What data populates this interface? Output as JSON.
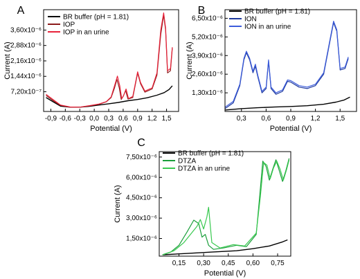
{
  "chart_data": [
    {
      "type": "line",
      "panel": "A",
      "xlabel": "Potential (V)",
      "ylabel": "Current (A)",
      "xlim": [
        -1.05,
        1.75
      ],
      "ylim": [
        -2e-07,
        4.55e-06
      ],
      "xticks": [
        -0.9,
        -0.6,
        -0.3,
        0.0,
        0.3,
        0.6,
        0.9,
        1.2,
        1.5
      ],
      "xtick_labels": [
        "-0,9",
        "-0,6",
        "-0,3",
        "0,0",
        "0,3",
        "0,6",
        "0,9",
        "1,2",
        "1,5"
      ],
      "yticks": [
        7.2e-07,
        1.44e-06,
        2.16e-06,
        2.88e-06,
        3.6e-06
      ],
      "ytick_labels": [
        "7,20x10⁻⁷",
        "1,44x10⁻⁶",
        "2,16x10⁻⁶",
        "2,88x10⁻⁶",
        "3,60x10⁻⁶"
      ],
      "legend_position": "top-left",
      "series": [
        {
          "name": "BR buffer (pH  = 1.81)",
          "color": "#000000",
          "x": [
            -1.0,
            -0.85,
            -0.7,
            -0.5,
            -0.3,
            -0.1,
            0.1,
            0.3,
            0.5,
            0.7,
            0.9,
            1.1,
            1.3,
            1.45,
            1.55,
            1.62
          ],
          "y": [
            4.5e-07,
            2.5e-07,
            5e-08,
            0,
            0,
            4e-08,
            1e-07,
            1.6e-07,
            2.2e-07,
            3e-07,
            3.6e-07,
            4.4e-07,
            5.6e-07,
            6.8e-07,
            8.2e-07,
            1e-06
          ]
        },
        {
          "name": "IOP",
          "color": "#8b1a1a",
          "x": [
            -1.0,
            -0.85,
            -0.7,
            -0.5,
            -0.3,
            -0.1,
            0.1,
            0.25,
            0.35,
            0.42,
            0.47,
            0.52,
            0.56,
            0.6,
            0.65,
            0.7,
            0.8,
            0.9,
            0.96,
            1.05,
            1.2,
            1.3,
            1.38,
            1.44,
            1.48,
            1.52,
            1.58,
            1.62
          ],
          "y": [
            5.5e-07,
            3e-07,
            8e-08,
            0,
            0,
            6e-08,
            1.4e-07,
            2.5e-07,
            4.5e-07,
            9e-07,
            1.3e-06,
            9e-07,
            3.6e-07,
            5e-07,
            7.8e-07,
            3.8e-07,
            4.5e-07,
            1.6e-06,
            1.1e-06,
            7e-07,
            8.5e-07,
            1.5e-06,
            3.4e-06,
            4.3e-06,
            3.6e-06,
            1.6e-06,
            1.7e-06,
            2.75e-06
          ]
        },
        {
          "name": "IOP in an urine",
          "color": "#e8233a",
          "x": [
            -1.0,
            -0.85,
            -0.7,
            -0.5,
            -0.3,
            -0.1,
            0.1,
            0.25,
            0.35,
            0.42,
            0.48,
            0.53,
            0.57,
            0.61,
            0.66,
            0.71,
            0.8,
            0.9,
            0.96,
            1.05,
            1.2,
            1.3,
            1.38,
            1.44,
            1.48,
            1.52,
            1.58,
            1.62
          ],
          "y": [
            6e-07,
            3.5e-07,
            1e-07,
            1e-08,
            0,
            7e-08,
            1.5e-07,
            2.6e-07,
            4.8e-07,
            1e-06,
            1.45e-06,
            1e-06,
            4e-07,
            5.5e-07,
            8.5e-07,
            4e-07,
            5e-07,
            1.65e-06,
            1.15e-06,
            7.5e-07,
            9e-07,
            1.6e-06,
            3.6e-06,
            4.4e-06,
            3.7e-06,
            1.7e-06,
            1.8e-06,
            2.8e-06
          ]
        }
      ]
    },
    {
      "type": "line",
      "panel": "B",
      "xlabel": "Potential (V)",
      "ylabel": "Current (A)",
      "xlim": [
        0.1,
        1.7
      ],
      "ylim": [
        0,
        7.1e-06
      ],
      "xticks": [
        0.3,
        0.6,
        0.9,
        1.2,
        1.5
      ],
      "xtick_labels": [
        "0,3",
        "0,6",
        "0,9",
        "1,2",
        "1,5"
      ],
      "yticks": [
        1.3e-06,
        2.6e-06,
        3.9e-06,
        5.2e-06,
        6.5e-06
      ],
      "ytick_labels": [
        "1,30x10⁻⁶",
        "2,60x10⁻⁶",
        "3,90x10⁻⁶",
        "5,20x10⁻⁶",
        "6,50x10⁻⁶"
      ],
      "legend_position": "top-left",
      "series": [
        {
          "name": "BR buffer (pH  = 1.81)",
          "color": "#000000",
          "x": [
            0.1,
            0.3,
            0.5,
            0.7,
            0.9,
            1.1,
            1.3,
            1.45,
            1.55,
            1.62
          ],
          "y": [
            1e-07,
            2e-07,
            2.6e-07,
            3.1e-07,
            3.5e-07,
            4e-07,
            5e-07,
            6.5e-07,
            8e-07,
            1e-06
          ]
        },
        {
          "name": "ION",
          "color": "#1f3a9e",
          "x": [
            0.1,
            0.2,
            0.28,
            0.33,
            0.36,
            0.4,
            0.44,
            0.47,
            0.5,
            0.55,
            0.6,
            0.63,
            0.66,
            0.72,
            0.8,
            0.86,
            0.9,
            1.0,
            1.1,
            1.2,
            1.3,
            1.38,
            1.42,
            1.46,
            1.5,
            1.56,
            1.6
          ],
          "y": [
            2e-07,
            6e-07,
            1.8e-06,
            3.6e-06,
            4.1e-06,
            3.6e-06,
            2.7e-06,
            3.15e-06,
            2.4e-06,
            1.3e-06,
            1.6e-06,
            3.5e-06,
            1.6e-06,
            1.2e-06,
            1.4e-06,
            2.1e-06,
            2.05e-06,
            1.7e-06,
            1.6e-06,
            1.8e-06,
            2.6e-06,
            5e-06,
            6.2e-06,
            5.6e-06,
            2.9e-06,
            3e-06,
            3.7e-06
          ]
        },
        {
          "name": "ION in an urine",
          "color": "#3b5bdb",
          "x": [
            0.1,
            0.2,
            0.28,
            0.33,
            0.36,
            0.4,
            0.44,
            0.47,
            0.5,
            0.55,
            0.6,
            0.63,
            0.66,
            0.72,
            0.8,
            0.86,
            0.9,
            1.0,
            1.1,
            1.2,
            1.3,
            1.38,
            1.42,
            1.46,
            1.5,
            1.56,
            1.6
          ],
          "y": [
            3e-07,
            7e-07,
            1.9e-06,
            3.7e-06,
            4.2e-06,
            3.7e-06,
            2.8e-06,
            3.3e-06,
            2.5e-06,
            1.4e-06,
            1.7e-06,
            3.6e-06,
            1.7e-06,
            1.3e-06,
            1.5e-06,
            2.2e-06,
            2.15e-06,
            1.8e-06,
            1.7e-06,
            1.9e-06,
            2.7e-06,
            5.1e-06,
            6.3e-06,
            5.7e-06,
            3e-06,
            3.1e-06,
            3.8e-06
          ]
        }
      ]
    },
    {
      "type": "line",
      "panel": "C",
      "xlabel": "Potential (V)",
      "ylabel": "Current (A)",
      "xlim": [
        0.03,
        0.83
      ],
      "ylim": [
        2e-07,
        7.9e-06
      ],
      "xticks": [
        0.15,
        0.3,
        0.45,
        0.6,
        0.75
      ],
      "xtick_labels": [
        "0,15",
        "0,30",
        "0,45",
        "0,60",
        "0,75"
      ],
      "yticks": [
        1.5e-06,
        3e-06,
        4.5e-06,
        6e-06,
        7.5e-06
      ],
      "ytick_labels": [
        "1,50x10⁻⁶",
        "3,00x10⁻⁶",
        "4,50x10⁻⁶",
        "6,00x10⁻⁶",
        "7,50x10⁻⁶"
      ],
      "legend_position": "top-left",
      "series": [
        {
          "name": "BR buffer (pH  = 1.81)",
          "color": "#000000",
          "x": [
            0.05,
            0.2,
            0.35,
            0.5,
            0.6,
            0.7,
            0.78,
            0.81
          ],
          "y": [
            3e-07,
            4e-07,
            5e-07,
            6e-07,
            7.5e-07,
            9.5e-07,
            1.25e-06,
            1.4e-06
          ]
        },
        {
          "name": "DTZA",
          "color": "#1a9e3a",
          "x": [
            0.05,
            0.1,
            0.15,
            0.2,
            0.24,
            0.27,
            0.29,
            0.31,
            0.33,
            0.36,
            0.42,
            0.5,
            0.56,
            0.62,
            0.64,
            0.66,
            0.68,
            0.7,
            0.72,
            0.74,
            0.76,
            0.78,
            0.8,
            0.82
          ],
          "y": [
            3e-07,
            5e-07,
            1e-06,
            2e-06,
            2.85e-06,
            2.6e-06,
            1.6e-06,
            1.8e-06,
            1e-06,
            7e-07,
            8e-07,
            1e-06,
            9e-07,
            1.8e-06,
            4.5e-06,
            7.2e-06,
            6.8e-06,
            5.8e-06,
            6.6e-06,
            7.3e-06,
            6.5e-06,
            5.7e-06,
            6.5e-06,
            7.4e-06
          ]
        },
        {
          "name": "DTZA in an urine",
          "color": "#38c94f",
          "x": [
            0.05,
            0.12,
            0.18,
            0.22,
            0.26,
            0.28,
            0.3,
            0.32,
            0.33,
            0.35,
            0.4,
            0.48,
            0.55,
            0.62,
            0.645,
            0.665,
            0.685,
            0.705,
            0.725,
            0.745,
            0.765,
            0.785,
            0.805,
            0.82
          ],
          "y": [
            3e-07,
            6e-07,
            1.2e-06,
            1.8e-06,
            2.4e-06,
            2.9e-06,
            2.2e-06,
            3.1e-06,
            3.8e-06,
            1.2e-06,
            8e-07,
            1.05e-06,
            9.5e-07,
            1.9e-06,
            4.6e-06,
            7.1e-06,
            6.9e-06,
            5.9e-06,
            6.7e-06,
            7.2e-06,
            6.6e-06,
            5.8e-06,
            6.6e-06,
            7.3e-06
          ]
        }
      ]
    }
  ]
}
